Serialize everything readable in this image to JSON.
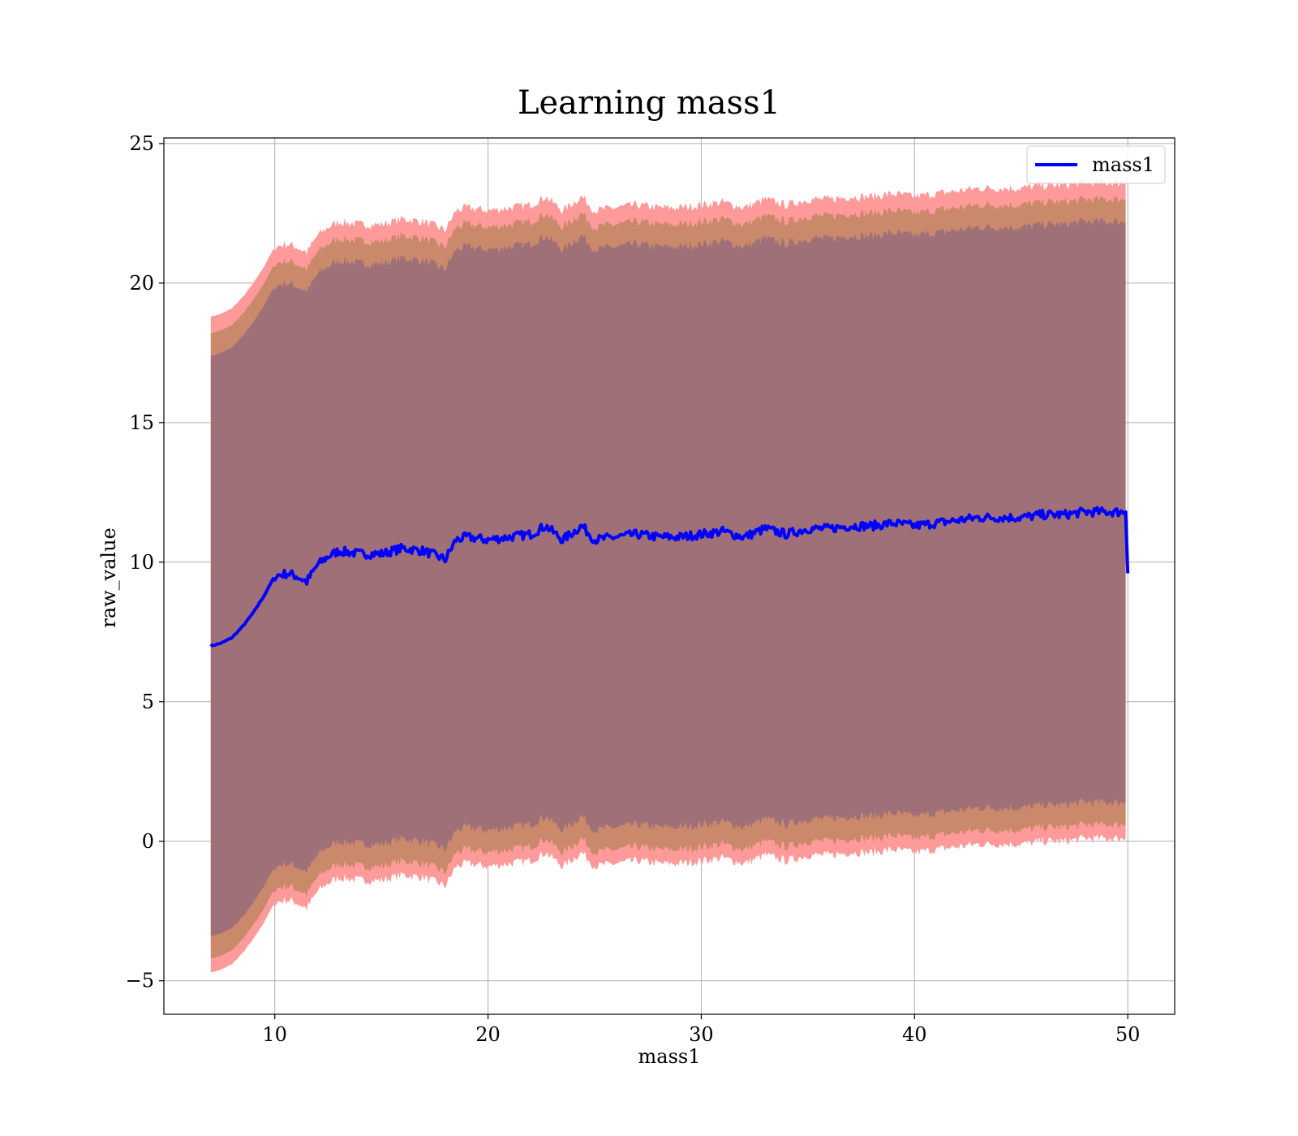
{
  "chart_data": {
    "type": "area",
    "title": "Learning mass1",
    "xlabel": "mass1",
    "ylabel": "raw_value",
    "xlim": [
      4.8,
      52.2
    ],
    "ylim": [
      -6.2,
      25.2
    ],
    "x_ticks": [
      10,
      20,
      30,
      40,
      50
    ],
    "y_ticks": [
      -5,
      0,
      5,
      10,
      15,
      20,
      25
    ],
    "x_tick_labels": [
      "10",
      "20",
      "30",
      "40",
      "50"
    ],
    "y_tick_labels": [
      "−5",
      "0",
      "5",
      "10",
      "15",
      "20",
      "25"
    ],
    "grid": true,
    "legend": {
      "position": "upper right",
      "entries": [
        "mass1"
      ]
    },
    "colors": {
      "line": "#0000ff",
      "band_outer": "#ff9a9a",
      "band_middle": "#c9896a",
      "band_inner": "#a07078",
      "grid": "#b0b0b0"
    },
    "series": [
      {
        "name": "mass1",
        "x": [
          7.0,
          7.5,
          8.0,
          8.5,
          9.0,
          9.5,
          10.0,
          10.3,
          10.6,
          11.0,
          11.5,
          12.0,
          12.5,
          13.0,
          14.0,
          15.0,
          16.0,
          17.0,
          18.0,
          18.5,
          19.0,
          20.0,
          21.0,
          22.0,
          22.7,
          23.5,
          24.4,
          25.0,
          26.0,
          27.0,
          28.0,
          29.0,
          30.0,
          31.0,
          32.0,
          33.0,
          34.0,
          35.0,
          36.0,
          37.0,
          38.0,
          39.0,
          40.0,
          41.0,
          42.0,
          43.0,
          44.0,
          45.0,
          46.0,
          47.0,
          48.0,
          49.0,
          49.9,
          50.0
        ],
        "y": [
          7.0,
          7.1,
          7.3,
          7.7,
          8.2,
          8.8,
          9.5,
          9.55,
          9.6,
          9.5,
          9.3,
          9.9,
          10.2,
          10.4,
          10.3,
          10.3,
          10.5,
          10.4,
          10.1,
          10.8,
          10.9,
          10.8,
          10.9,
          11.0,
          11.3,
          10.8,
          11.3,
          10.8,
          10.9,
          11.0,
          10.9,
          10.9,
          11.0,
          11.1,
          10.9,
          11.2,
          11.0,
          11.2,
          11.2,
          11.3,
          11.3,
          11.4,
          11.3,
          11.4,
          11.5,
          11.6,
          11.6,
          11.6,
          11.7,
          11.7,
          11.8,
          11.8,
          11.8,
          9.6
        ]
      }
    ],
    "bands": [
      {
        "name": "outer",
        "upper_offset": 11.8,
        "lower_offset": -11.7
      },
      {
        "name": "middle",
        "upper_offset": 11.2,
        "lower_offset": -11.2
      },
      {
        "name": "inner",
        "upper_offset": 10.4,
        "lower_offset": -10.4
      }
    ]
  }
}
